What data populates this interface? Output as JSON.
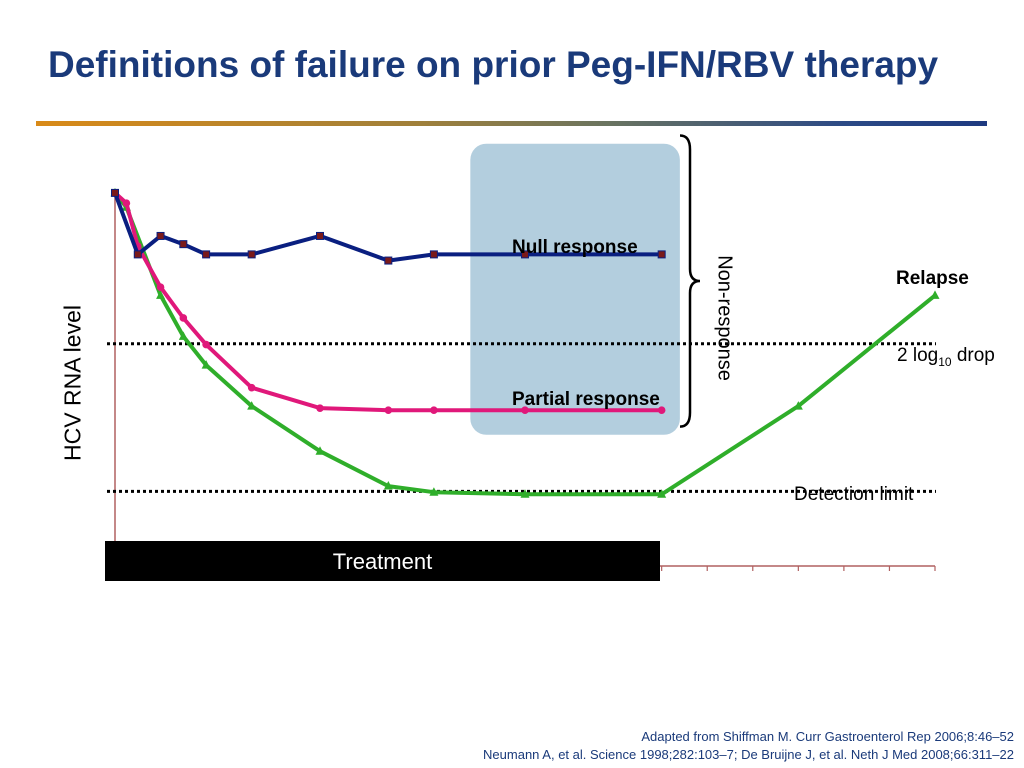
{
  "title": "Definitions of failure on prior Peg-IFN/RBV therapy",
  "colors": {
    "title": "#1a3a7a",
    "null_series": "#0a1f80",
    "null_marker": "#7a1a1a",
    "partial_series": "#e0187a",
    "relapse_series": "#2fae2a",
    "highlight_box": "#b3cede",
    "axis": "#b06060"
  },
  "annotations": {
    "null_response": "Null response",
    "partial_response": "Partial response",
    "relapse": "Relapse",
    "non_response": "Non-response",
    "log_drop_prefix": "2 log",
    "log_drop_sub": "10",
    "log_drop_suffix": " drop",
    "detection_limit": "Detection limit",
    "treatment": "Treatment"
  },
  "citations": {
    "line1": "Adapted from Shiffman M. Curr Gastroenterol Rep 2006;8:46–52",
    "line2": "Neumann A, et al. Science 1998;282:103–7; De Bruijne J, et al. Neth J Med 2008;66:311–22"
  },
  "chart_data": {
    "type": "line",
    "title": "",
    "xlabel": "",
    "ylabel": "HCV RNA level",
    "xlim": [
      0,
      18
    ],
    "ylim": [
      0,
      10
    ],
    "x_tick_values": [
      12,
      13,
      14,
      15,
      16,
      17,
      18
    ],
    "reference_lines": [
      {
        "label": "2 log10 drop",
        "y": 5.42
      },
      {
        "label": "Detection limit",
        "y": 1.82
      }
    ],
    "treatment_period": [
      0,
      12
    ],
    "highlight_box": {
      "x_range": [
        7.8,
        12.4
      ],
      "y_range": [
        3.2,
        10.3
      ]
    },
    "non_response_brace": {
      "y_range": [
        3.4,
        10.5
      ]
    },
    "series": [
      {
        "name": "Null response",
        "x": [
          0,
          0.5,
          1.0,
          1.5,
          2.0,
          3.0,
          4.5,
          6.0,
          7.0,
          9.0,
          12.0
        ],
        "y": [
          9.1,
          7.6,
          8.05,
          7.85,
          7.6,
          7.6,
          8.05,
          7.45,
          7.6,
          7.6,
          7.6
        ]
      },
      {
        "name": "Partial response",
        "x": [
          0,
          0.25,
          0.5,
          1.0,
          1.5,
          2.0,
          3.0,
          4.5,
          6.0,
          7.0,
          9.0,
          12.0
        ],
        "y": [
          9.1,
          8.85,
          7.8,
          6.8,
          6.05,
          5.4,
          4.35,
          3.85,
          3.8,
          3.8,
          3.8,
          3.8
        ]
      },
      {
        "name": "Relapse",
        "x": [
          0,
          0.25,
          1.0,
          1.5,
          2.0,
          3.0,
          4.5,
          6.0,
          7.0,
          9.0,
          12.0,
          15.0,
          18.0
        ],
        "y": [
          9.1,
          8.75,
          6.6,
          5.6,
          4.9,
          3.9,
          2.8,
          1.95,
          1.8,
          1.75,
          1.75,
          3.9,
          6.6
        ]
      }
    ]
  }
}
